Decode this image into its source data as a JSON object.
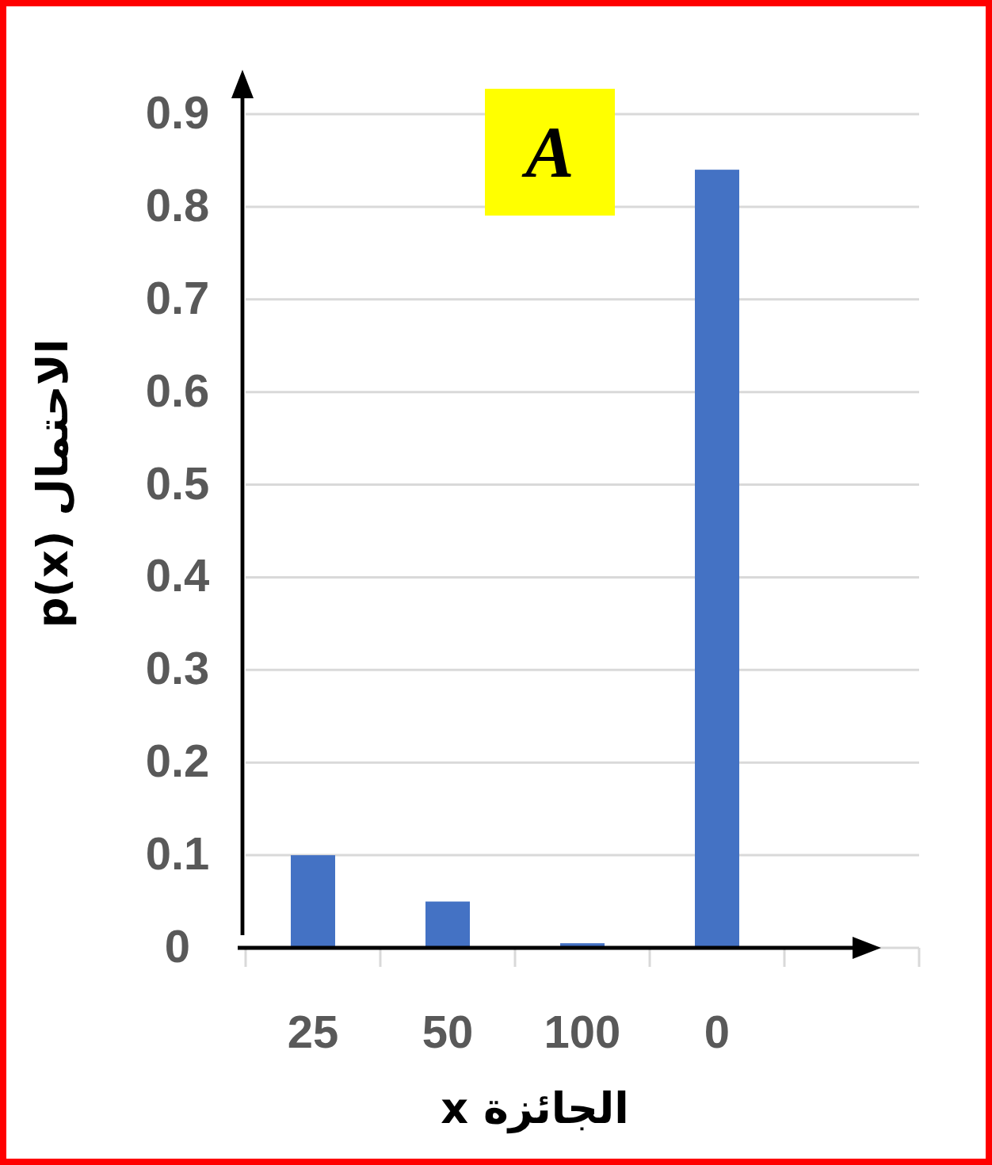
{
  "chart_data": {
    "type": "bar",
    "xlabel": "x الجائزة",
    "ylabel": "p(x) الاحتمال",
    "annotations": [
      "A"
    ],
    "categories": [
      "25",
      "50",
      "100",
      "0",
      null
    ],
    "values": [
      0.1,
      0.05,
      0.005,
      0.84,
      null
    ],
    "color": "#4472c4",
    "ylim": [
      0,
      0.9
    ],
    "yticks": [
      0,
      0.1,
      0.2,
      0.3,
      0.4,
      0.5,
      0.6,
      0.7,
      0.8,
      0.9
    ],
    "grid": "y"
  }
}
